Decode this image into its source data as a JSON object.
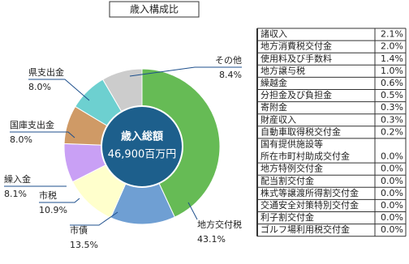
{
  "chart_data": {
    "type": "pie",
    "title": "歳入構成比",
    "center_label": "歳入総額",
    "center_value": "46,900百万円",
    "categories": [
      "地方交付税",
      "市債",
      "市税",
      "繰入金",
      "国庫支出金",
      "県支出金",
      "その他"
    ],
    "values": [
      43.1,
      13.5,
      10.9,
      8.1,
      8.0,
      8.0,
      8.4
    ],
    "value_labels": [
      "43.1%",
      "13.5%",
      "10.9%",
      "8.1%",
      "8.0%",
      "8.0%",
      "8.4%"
    ],
    "colors": [
      "#66bb55",
      "#6f9fd3",
      "#ffffcc",
      "#c9a0f5",
      "#cf9a66",
      "#6dd0d0",
      "#cccccc"
    ]
  },
  "table": {
    "rows": [
      {
        "label": "諸収入",
        "value": "2.1%"
      },
      {
        "label": "地方消費税交付金",
        "value": "2.0%"
      },
      {
        "label": "使用料及び手数料",
        "value": "1.4%"
      },
      {
        "label": "地方譲与税",
        "value": "1.0%"
      },
      {
        "label": "繰越金",
        "value": "0.6%"
      },
      {
        "label": "分担金及び負担金",
        "value": "0.5%"
      },
      {
        "label": "寄附金",
        "value": "0.3%"
      },
      {
        "label": "財産収入",
        "value": "0.3%"
      },
      {
        "label": "自動車取得税交付金",
        "value": "0.2%"
      },
      {
        "label": [
          "国有提供施設等",
          "所在市町村助成交付金"
        ],
        "value": "0.0%"
      },
      {
        "label": "地方特例交付金",
        "value": "0.0%"
      },
      {
        "label": "配当割交付金",
        "value": "0.0%"
      },
      {
        "label": "株式等譲渡所得割交付金",
        "value": "0.0%"
      },
      {
        "label": "交通安全対策特別交付金",
        "value": "0.0%"
      },
      {
        "label": "利子割交付金",
        "value": "0.0%"
      },
      {
        "label": "ゴルフ場利用税交付金",
        "value": "0.0%"
      }
    ]
  }
}
